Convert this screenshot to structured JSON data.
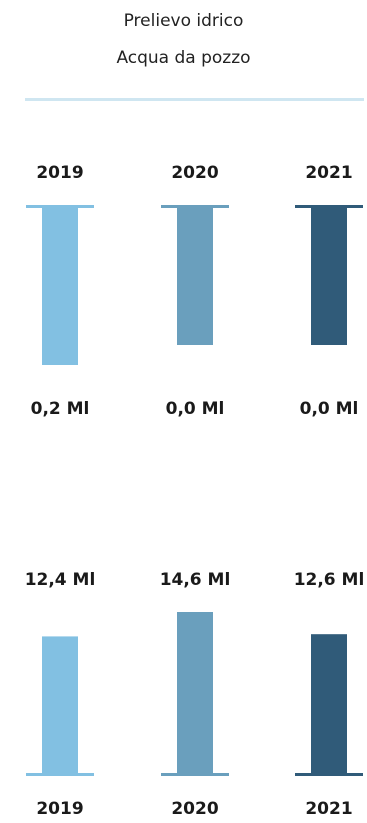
{
  "header": {
    "title": "Prelievo idrico",
    "subtitle": "Acqua da pozzo"
  },
  "colors": {
    "2019": "#82c0e2",
    "2020": "#6a9fbd",
    "2021": "#305b79",
    "divider": "#cfe6f1"
  },
  "chart_data": [
    {
      "type": "bar",
      "categories": [
        "2019",
        "2020",
        "2021"
      ],
      "values": [
        0.2,
        0.0,
        0.0
      ],
      "value_labels": [
        "0,2 Ml",
        "0,0 Ml",
        "0,0 Ml"
      ],
      "bar_direction": "down",
      "category_position": "top",
      "value_label_position": "bottom"
    },
    {
      "type": "bar",
      "categories": [
        "2019",
        "2020",
        "2021"
      ],
      "values": [
        12.4,
        14.6,
        12.6
      ],
      "value_labels": [
        "12,4 Ml",
        "14,6 Ml",
        "12,6 Ml"
      ],
      "bar_direction": "up",
      "category_position": "bottom",
      "value_label_position": "top"
    }
  ]
}
